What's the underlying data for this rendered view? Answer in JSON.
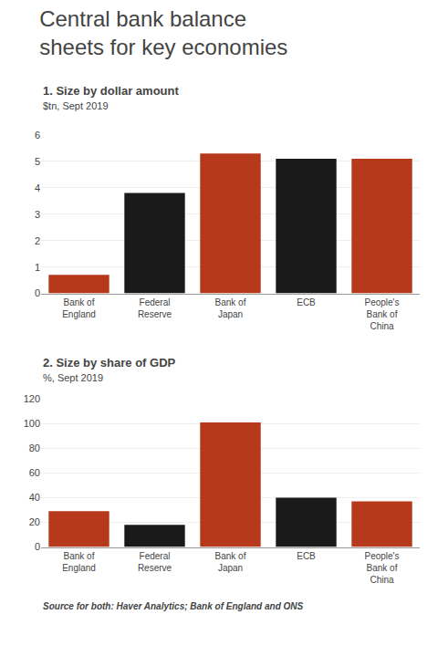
{
  "title": "Central bank balance\nsheets for key economies",
  "source": "Source for both: Haver Analytics; Bank of England and ONS",
  "chart_data": [
    {
      "type": "bar",
      "title": "1. Size by dollar amount",
      "subtitle": "$tn, Sept 2019",
      "categories": [
        "Bank of England",
        "Federal Reserve",
        "Bank of Japan",
        "ECB",
        "People's Bank of China"
      ],
      "values": [
        0.7,
        3.8,
        5.3,
        5.1,
        5.1
      ],
      "colors": [
        "#b5391a",
        "#1a1a1a",
        "#b5391a",
        "#1a1a1a",
        "#b5391a"
      ],
      "ylim": [
        0,
        6
      ],
      "yticks": [
        0,
        1,
        2,
        3,
        4,
        5,
        6
      ],
      "grid": true
    },
    {
      "type": "bar",
      "title": "2. Size by share of GDP",
      "subtitle": "%, Sept 2019",
      "categories": [
        "Bank of England",
        "Federal Reserve",
        "Bank of Japan",
        "ECB",
        "People's Bank of China"
      ],
      "values": [
        29,
        18,
        101,
        40,
        37
      ],
      "colors": [
        "#b5391a",
        "#1a1a1a",
        "#b5391a",
        "#1a1a1a",
        "#b5391a"
      ],
      "ylim": [
        0,
        120
      ],
      "yticks": [
        0,
        20,
        40,
        60,
        80,
        100,
        120
      ],
      "grid": true
    }
  ]
}
